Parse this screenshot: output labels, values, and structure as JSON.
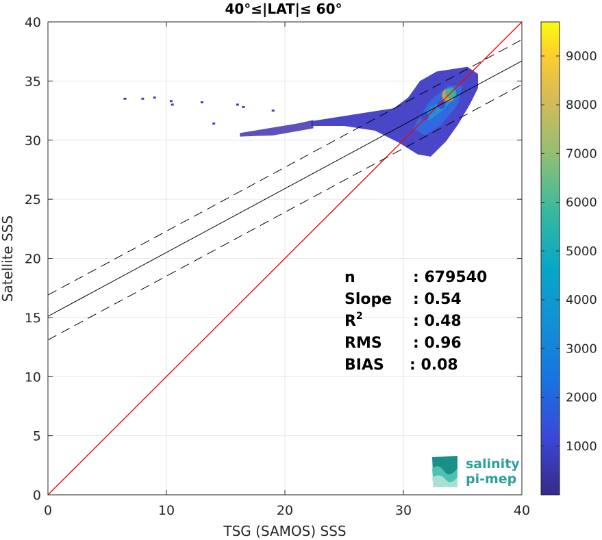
{
  "chart_data": {
    "type": "heatmap",
    "title": "40°≤|LAT|≤ 60°",
    "xlabel": "TSG (SAMOS) SSS",
    "ylabel": "Satellite SSS",
    "xlim": [
      0,
      40
    ],
    "ylim": [
      0,
      40
    ],
    "xticks": [
      0,
      10,
      20,
      30,
      40
    ],
    "yticks": [
      0,
      5,
      10,
      15,
      20,
      25,
      30,
      35,
      40
    ],
    "grid": true,
    "colorbar": {
      "range": [
        0,
        9700
      ],
      "ticks": [
        1000,
        2000,
        3000,
        4000,
        5000,
        6000,
        7000,
        8000,
        9000
      ],
      "colormap": "parula"
    },
    "lines": [
      {
        "name": "1:1",
        "color": "#ff0000",
        "style": "solid",
        "x": [
          0,
          40
        ],
        "y": [
          0,
          40
        ]
      },
      {
        "name": "fit",
        "color": "#000000",
        "style": "solid",
        "x": [
          0,
          40
        ],
        "y": [
          15.1,
          36.7
        ]
      },
      {
        "name": "fit-upper",
        "color": "#000000",
        "style": "dashed",
        "x": [
          0,
          40
        ],
        "y": [
          16.9,
          38.5
        ]
      },
      {
        "name": "fit-lower",
        "color": "#000000",
        "style": "dashed",
        "x": [
          0,
          40
        ],
        "y": [
          13.1,
          34.7
        ]
      }
    ],
    "density_clusters": [
      {
        "x": 32.4,
        "y": 32.5,
        "value": 2500
      },
      {
        "x": 33.8,
        "y": 33.8,
        "value": 8000
      },
      {
        "x": 34.0,
        "y": 34.0,
        "value": 5000
      },
      {
        "x": 31.8,
        "y": 32.0,
        "value": 1500
      },
      {
        "x": 33.2,
        "y": 33.0,
        "value": 1800
      }
    ],
    "stats": [
      {
        "label": "n",
        "value": ": 679540"
      },
      {
        "label": "Slope",
        "value": ": 0.54"
      },
      {
        "label": "R",
        "sup": "2",
        "value": ": 0.48"
      },
      {
        "label": "RMS",
        "value": ": 0.96"
      },
      {
        "label": "BIAS",
        "value": ": 0.08"
      }
    ]
  },
  "logo": {
    "line1": "salinity",
    "line2": "pi-mep",
    "color": "#2aa198"
  }
}
